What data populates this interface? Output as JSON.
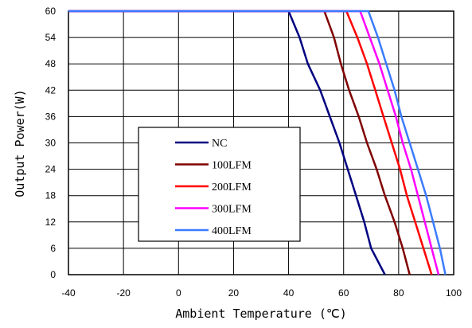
{
  "chart_data": {
    "type": "line",
    "title": "",
    "xlabel": "Ambient Temperature (℃)",
    "ylabel": "Output Power(W)",
    "xlim": [
      -40,
      100
    ],
    "ylim": [
      0,
      60
    ],
    "x_ticks": [
      "-40",
      "-20",
      "0",
      "20",
      "40",
      "60",
      "80",
      "100"
    ],
    "y_ticks": [
      "0",
      "6",
      "12",
      "18",
      "24",
      "30",
      "36",
      "42",
      "48",
      "54",
      "60"
    ],
    "grid": true,
    "legend_position": "lower-left",
    "series": [
      {
        "name": "NC",
        "color": "#000080",
        "points": [
          [
            -40,
            60
          ],
          [
            40,
            60
          ],
          [
            44,
            54
          ],
          [
            47,
            48
          ],
          [
            51.5,
            42
          ],
          [
            55,
            36
          ],
          [
            58.5,
            30
          ],
          [
            61.5,
            24
          ],
          [
            64.5,
            18
          ],
          [
            67.5,
            12
          ],
          [
            70,
            6
          ],
          [
            75,
            0
          ]
        ]
      },
      {
        "name": "100LFM",
        "color": "#800000",
        "points": [
          [
            -40,
            60
          ],
          [
            53,
            60
          ],
          [
            56.5,
            54
          ],
          [
            59,
            48
          ],
          [
            62,
            42
          ],
          [
            65.5,
            36
          ],
          [
            68.5,
            30
          ],
          [
            72,
            24
          ],
          [
            75,
            18
          ],
          [
            78.5,
            12
          ],
          [
            81.5,
            6
          ],
          [
            84,
            0
          ]
        ]
      },
      {
        "name": "200LFM",
        "color": "#ff0000",
        "points": [
          [
            -40,
            60
          ],
          [
            61,
            60
          ],
          [
            65,
            54
          ],
          [
            68.5,
            48
          ],
          [
            71.5,
            42
          ],
          [
            74.5,
            36
          ],
          [
            77.5,
            30
          ],
          [
            80.5,
            24
          ],
          [
            83,
            18
          ],
          [
            86,
            12
          ],
          [
            89,
            6
          ],
          [
            92,
            0
          ]
        ]
      },
      {
        "name": "300LFM",
        "color": "#ff00ff",
        "points": [
          [
            -40,
            60
          ],
          [
            66,
            60
          ],
          [
            69.5,
            54
          ],
          [
            73,
            48
          ],
          [
            76,
            42
          ],
          [
            79,
            36
          ],
          [
            81.5,
            30
          ],
          [
            84.5,
            24
          ],
          [
            87,
            18
          ],
          [
            89.5,
            12
          ],
          [
            92,
            6
          ],
          [
            94.5,
            0
          ]
        ]
      },
      {
        "name": "400LFM",
        "color": "#3a7bff",
        "points": [
          [
            -40,
            60
          ],
          [
            69,
            60
          ],
          [
            72.5,
            54
          ],
          [
            75.5,
            48
          ],
          [
            78.5,
            42
          ],
          [
            81,
            36
          ],
          [
            84,
            30
          ],
          [
            87,
            24
          ],
          [
            90,
            18
          ],
          [
            92.5,
            12
          ],
          [
            95,
            6
          ],
          [
            97,
            0
          ]
        ]
      }
    ]
  }
}
